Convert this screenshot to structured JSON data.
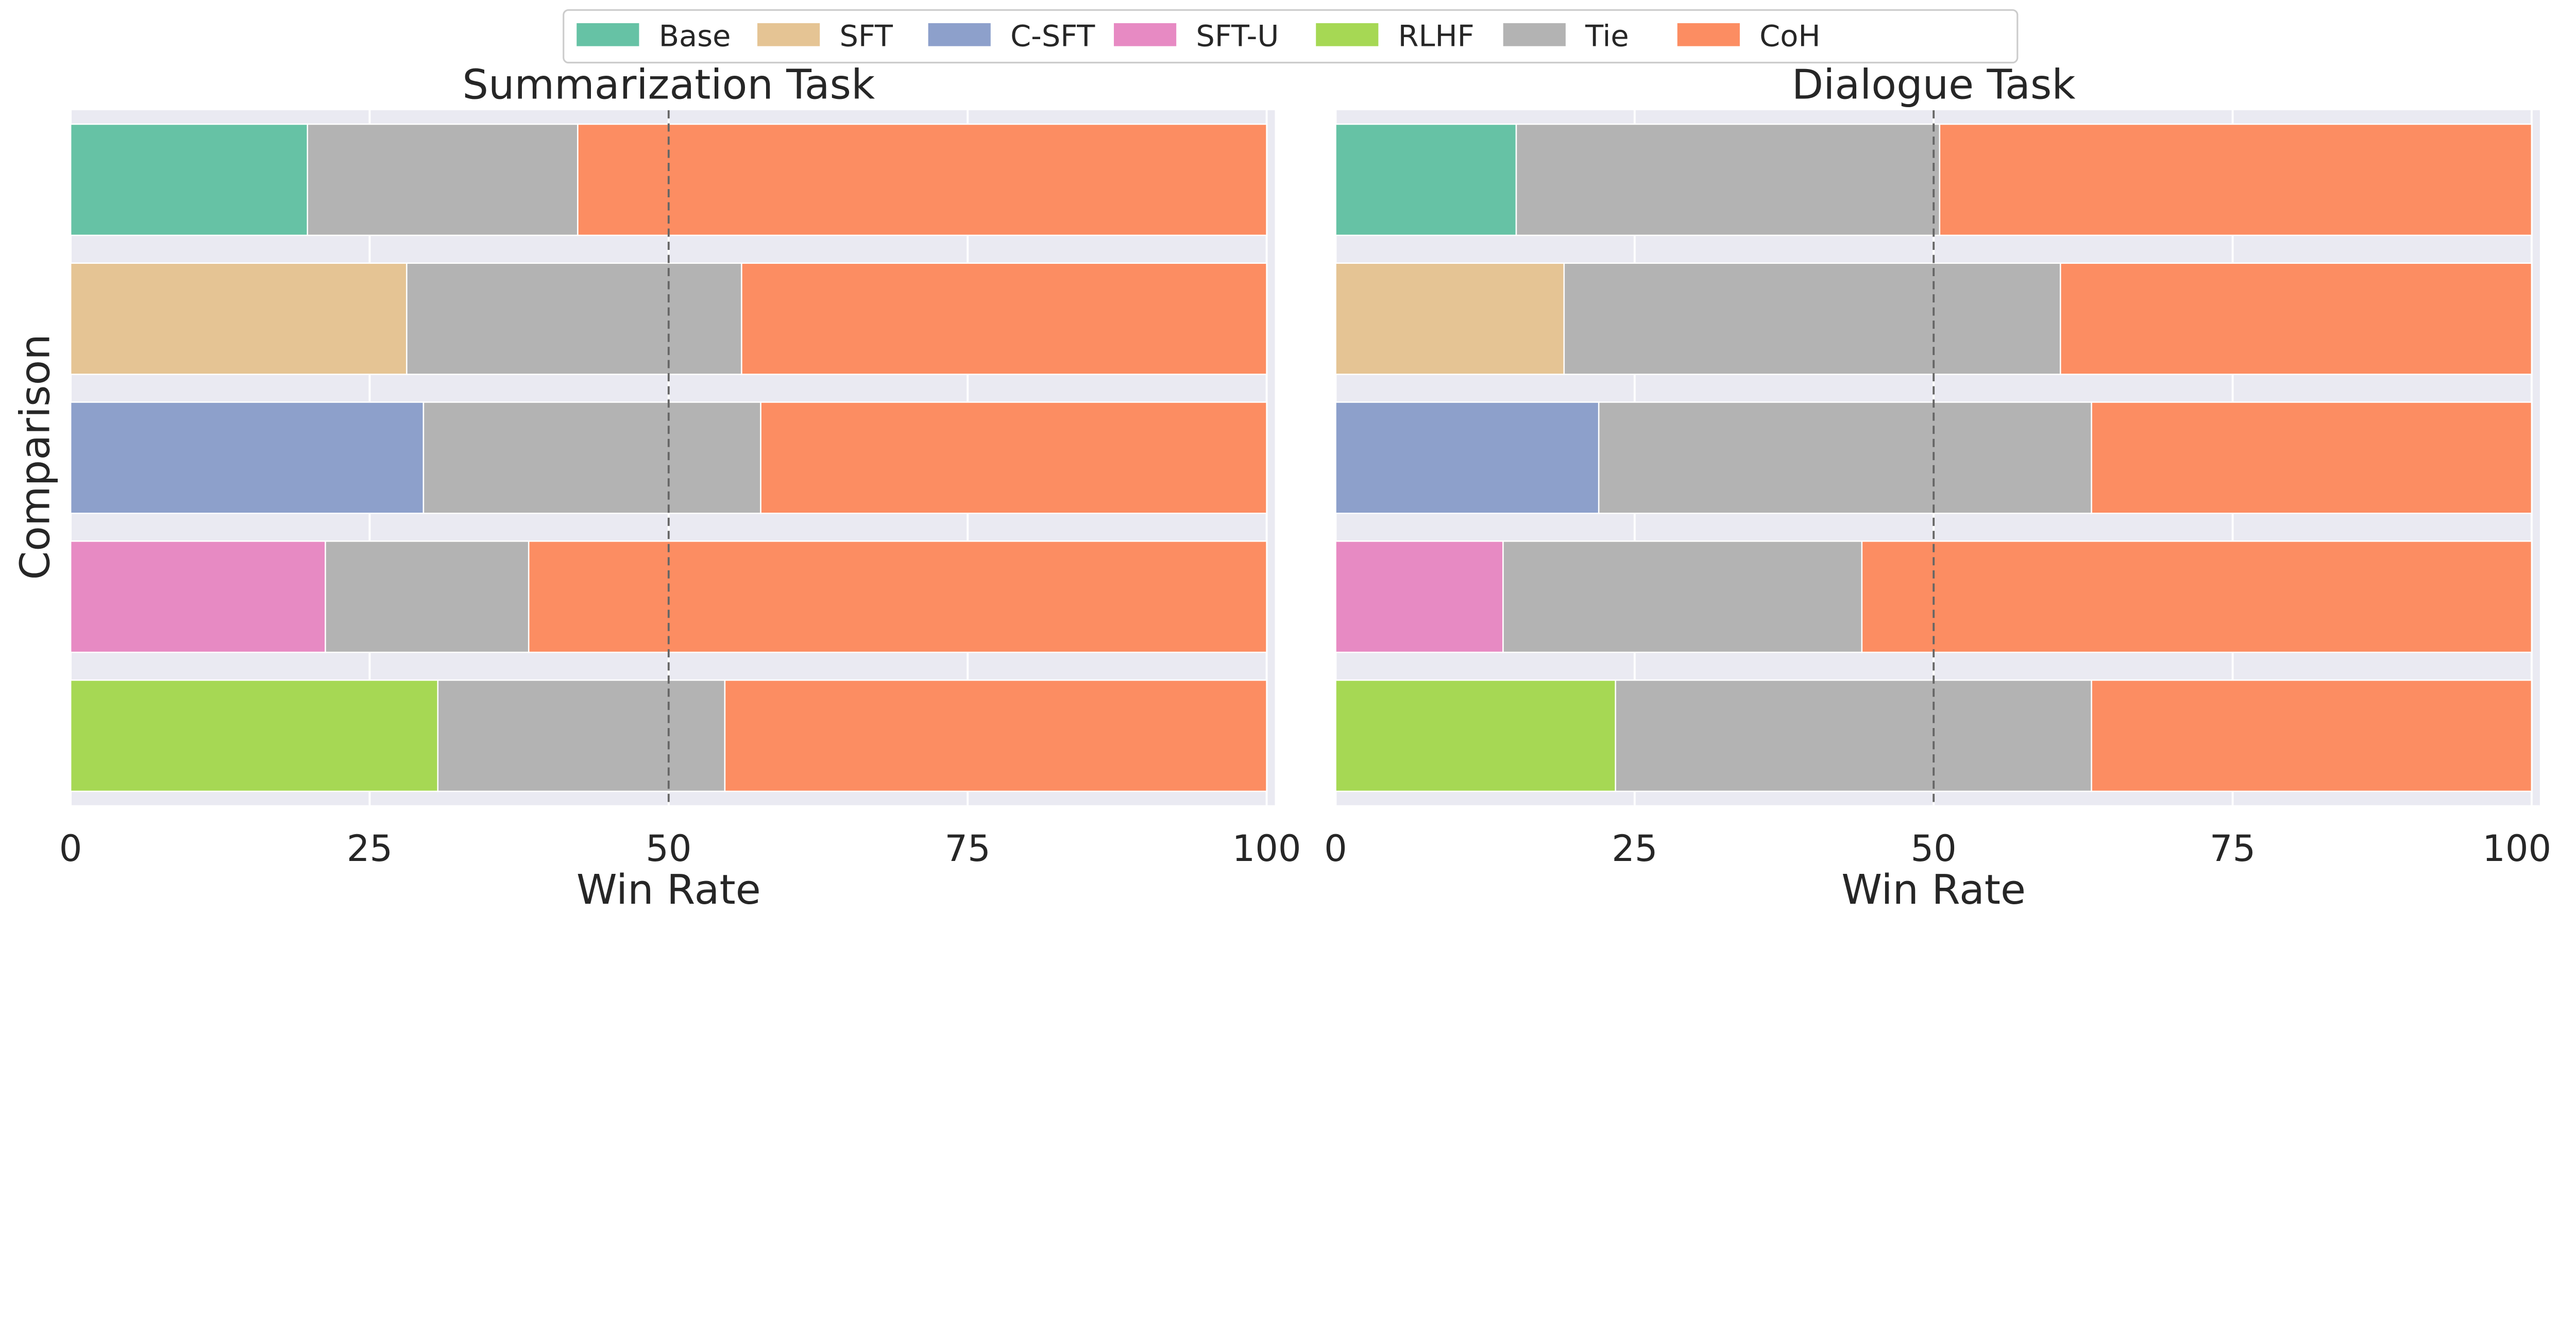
{
  "legend": {
    "placement": "top-center",
    "entries": [
      {
        "label": "Base",
        "color": "#66c2a5"
      },
      {
        "label": "SFT",
        "color": "#e5c494"
      },
      {
        "label": "C-SFT",
        "color": "#8da0cb"
      },
      {
        "label": "SFT-U",
        "color": "#e78ac3"
      },
      {
        "label": "RLHF",
        "color": "#a6d854"
      },
      {
        "label": "Tie",
        "color": "#b3b3b3"
      },
      {
        "label": "CoH",
        "color": "#fc8d62"
      }
    ]
  },
  "chart_data": [
    {
      "type": "bar",
      "orientation": "horizontal-stacked",
      "title": "Summarization Task",
      "xlabel": "Win Rate",
      "ylabel": "Comparison",
      "xlim": [
        0,
        100
      ],
      "xticks": [
        "0",
        "25",
        "50",
        "75",
        "100"
      ],
      "reference_line": 50,
      "grid": true,
      "background": "#eaeaf2",
      "rows": [
        {
          "baseline": "Base",
          "baseline_win": 19.8,
          "tie": 22.6,
          "coh": 57.6
        },
        {
          "baseline": "SFT",
          "baseline_win": 28.1,
          "tie": 28.0,
          "coh": 43.9
        },
        {
          "baseline": "C-SFT",
          "baseline_win": 29.5,
          "tie": 28.2,
          "coh": 42.3
        },
        {
          "baseline": "SFT-U",
          "baseline_win": 21.3,
          "tie": 17.0,
          "coh": 61.7
        },
        {
          "baseline": "RLHF",
          "baseline_win": 30.7,
          "tie": 24.0,
          "coh": 45.3
        }
      ]
    },
    {
      "type": "bar",
      "orientation": "horizontal-stacked",
      "title": "Dialogue Task",
      "xlabel": "Win Rate",
      "ylabel": "",
      "xlim": [
        0,
        100
      ],
      "xticks": [
        "0",
        "25",
        "50",
        "75",
        "100"
      ],
      "reference_line": 50,
      "grid": true,
      "background": "#eaeaf2",
      "rows": [
        {
          "baseline": "Base",
          "baseline_win": 15.1,
          "tie": 35.4,
          "coh": 49.5
        },
        {
          "baseline": "SFT",
          "baseline_win": 19.1,
          "tie": 41.5,
          "coh": 39.4
        },
        {
          "baseline": "C-SFT",
          "baseline_win": 22.0,
          "tie": 41.2,
          "coh": 36.8
        },
        {
          "baseline": "SFT-U",
          "baseline_win": 14.0,
          "tie": 30.0,
          "coh": 56.0
        },
        {
          "baseline": "RLHF",
          "baseline_win": 23.4,
          "tie": 39.8,
          "coh": 36.8
        }
      ]
    }
  ]
}
